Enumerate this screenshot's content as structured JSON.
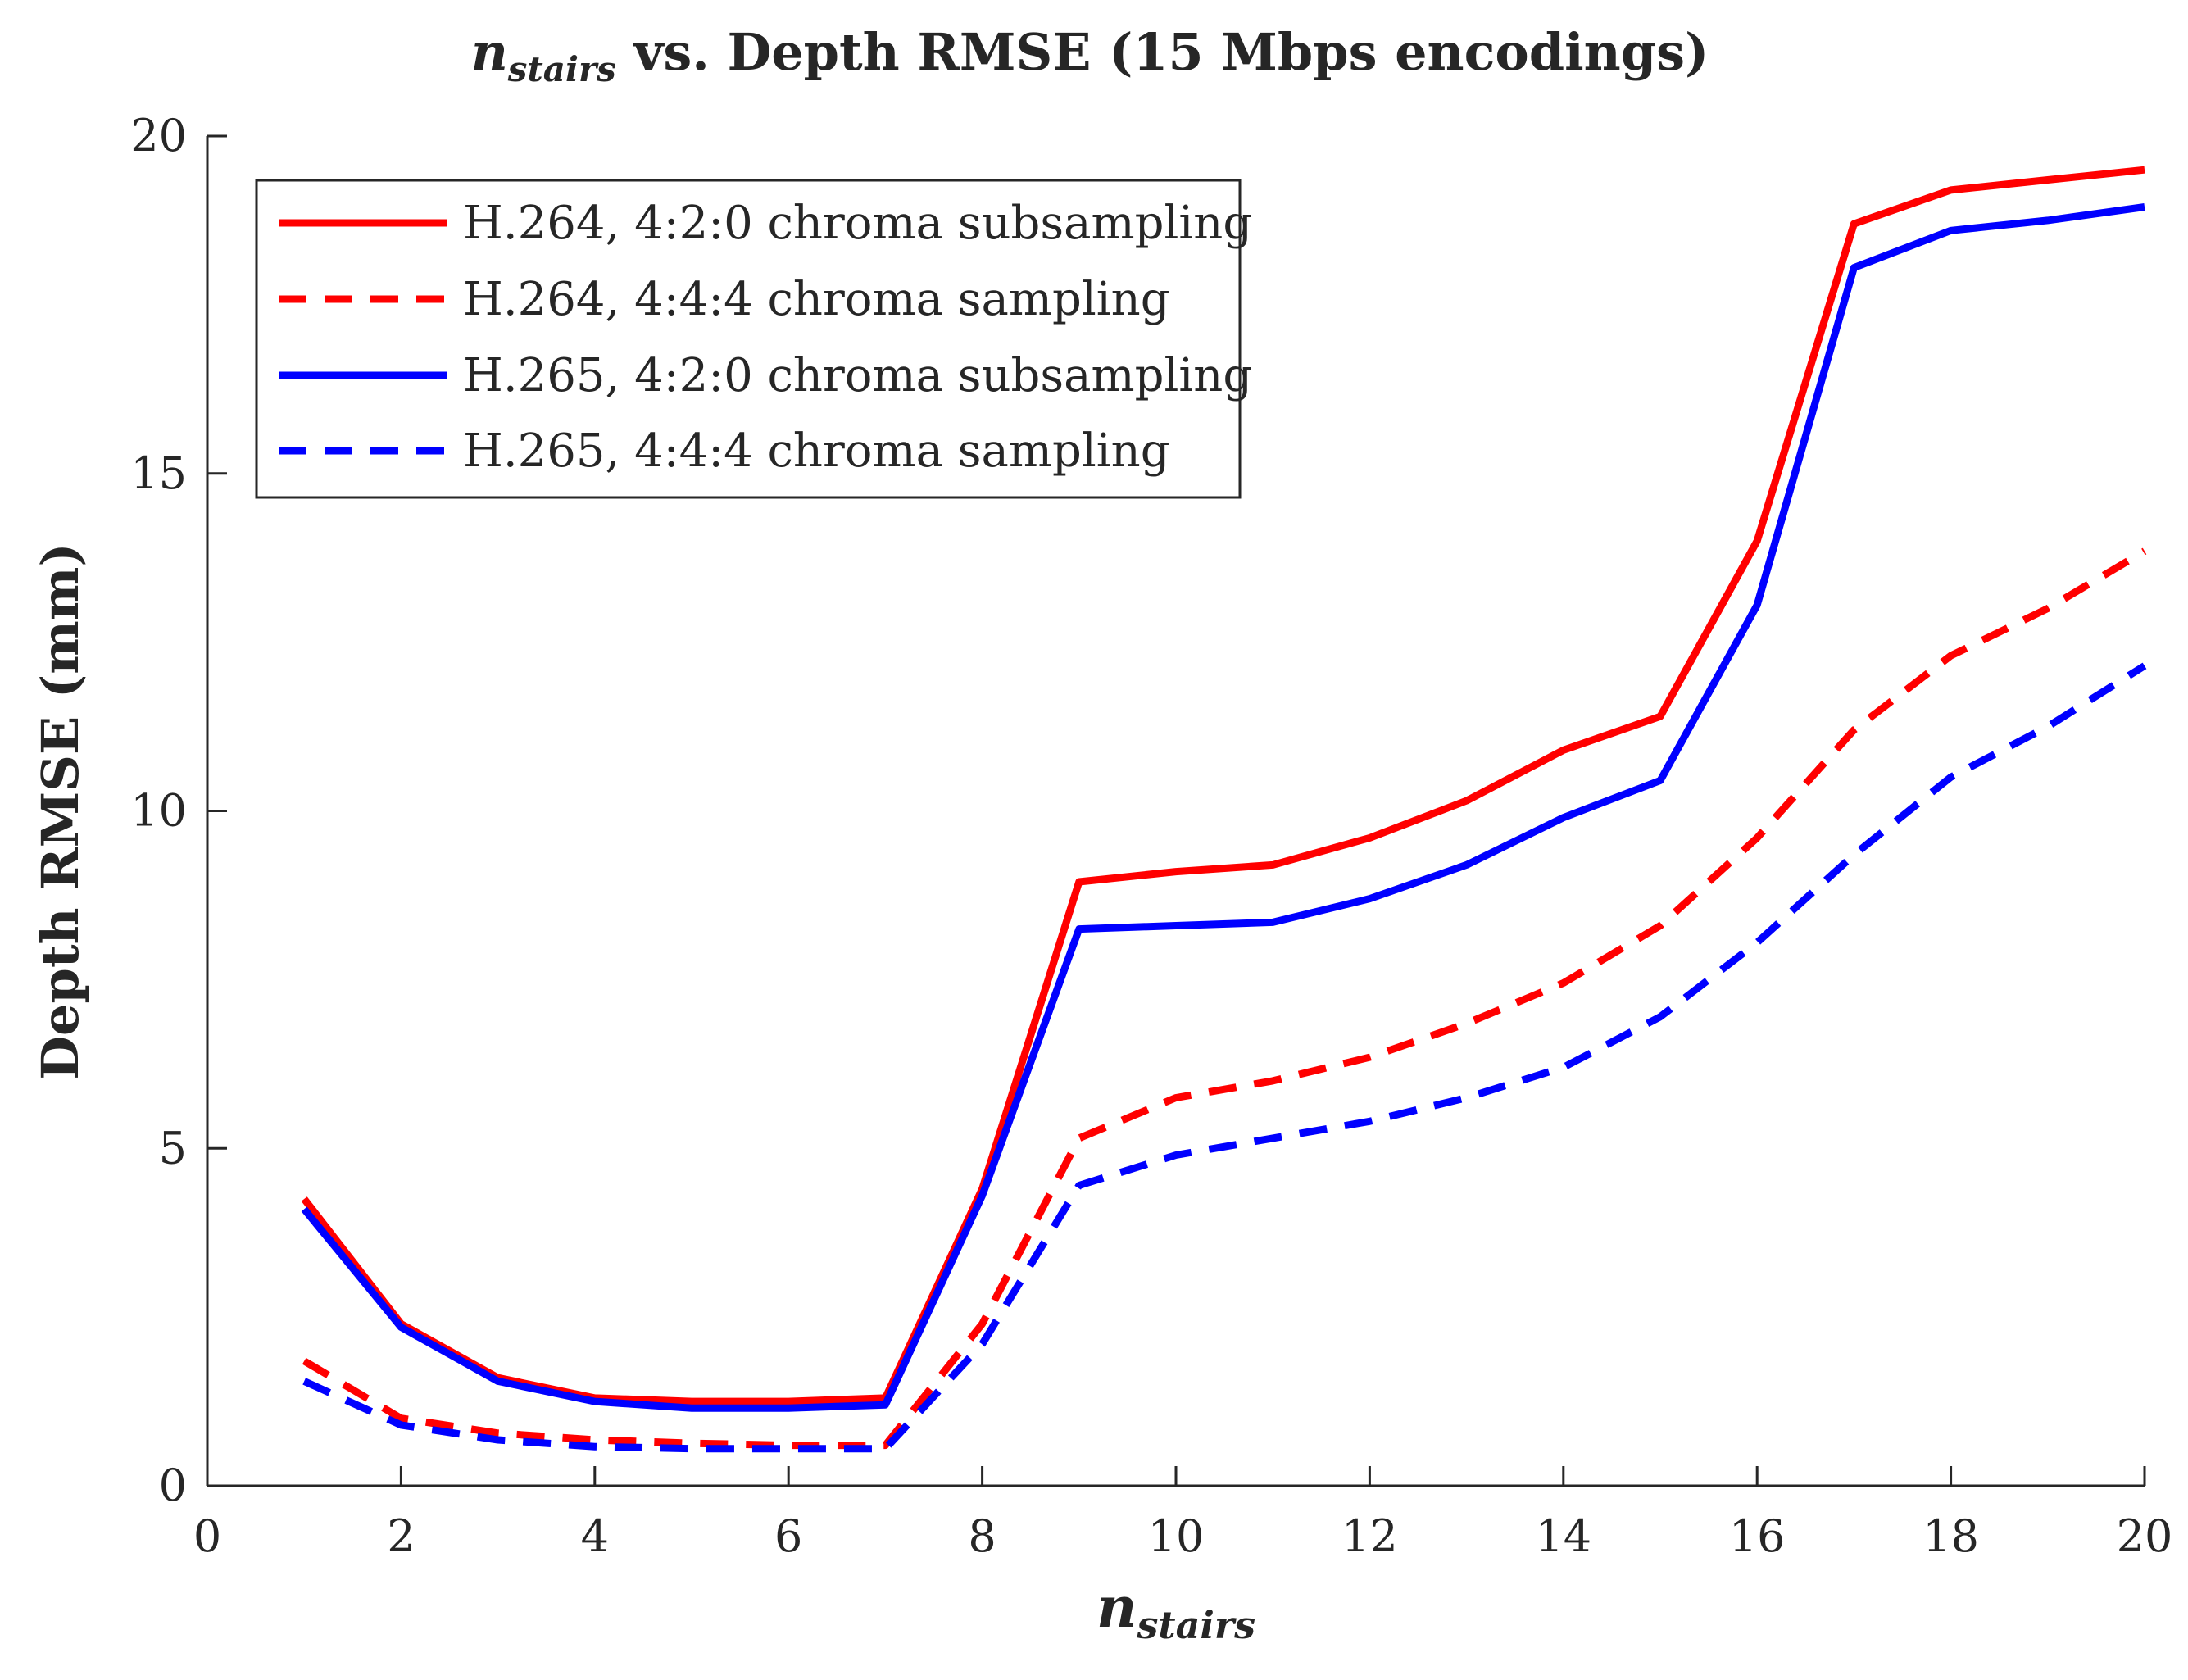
{
  "chart_data": {
    "type": "line",
    "title": {
      "symbol": "n",
      "subscript": "stairs",
      "rest": " vs. Depth RMSE (15 Mbps encodings)"
    },
    "xlabel": {
      "symbol": "n",
      "subscript": "stairs"
    },
    "ylabel": "Depth RMSE (mm)",
    "xlim": [
      0,
      20
    ],
    "ylim": [
      0,
      20
    ],
    "xticks": [
      0,
      2,
      4,
      6,
      8,
      10,
      12,
      14,
      16,
      18,
      20
    ],
    "yticks": [
      0,
      5,
      10,
      15,
      20
    ],
    "legend_position": "top-left",
    "x": [
      1,
      2,
      3,
      4,
      5,
      6,
      7,
      8,
      9,
      10,
      11,
      12,
      13,
      14,
      15,
      16,
      17,
      18,
      19,
      20
    ],
    "series": [
      {
        "name": "H.264, 4:2:0 chroma subsampling",
        "color": "#ff0000",
        "dashed": false,
        "values": [
          4.25,
          2.4,
          1.6,
          1.3,
          1.25,
          1.25,
          1.3,
          4.4,
          8.95,
          9.1,
          9.2,
          9.6,
          10.15,
          10.9,
          11.4,
          14.0,
          18.7,
          19.2,
          19.35,
          19.5
        ]
      },
      {
        "name": "H.264, 4:4:4 chroma sampling",
        "color": "#ff0000",
        "dashed": true,
        "values": [
          1.85,
          1.0,
          0.78,
          0.68,
          0.63,
          0.6,
          0.6,
          2.4,
          5.15,
          5.75,
          6.0,
          6.35,
          6.85,
          7.45,
          8.3,
          9.6,
          11.2,
          12.3,
          13.0,
          13.85
        ]
      },
      {
        "name": "H.265, 4:2:0 chroma subsampling",
        "color": "#0000ff",
        "dashed": false,
        "values": [
          4.1,
          2.35,
          1.55,
          1.25,
          1.15,
          1.15,
          1.2,
          4.3,
          8.25,
          8.3,
          8.35,
          8.7,
          9.2,
          9.9,
          10.45,
          13.05,
          18.05,
          18.6,
          18.75,
          18.95
        ]
      },
      {
        "name": "H.265, 4:4:4 chroma sampling",
        "color": "#0000ff",
        "dashed": true,
        "values": [
          1.55,
          0.9,
          0.68,
          0.58,
          0.55,
          0.55,
          0.55,
          2.1,
          4.45,
          4.9,
          5.15,
          5.4,
          5.75,
          6.2,
          6.95,
          8.05,
          9.35,
          10.5,
          11.25,
          12.15
        ]
      }
    ]
  }
}
